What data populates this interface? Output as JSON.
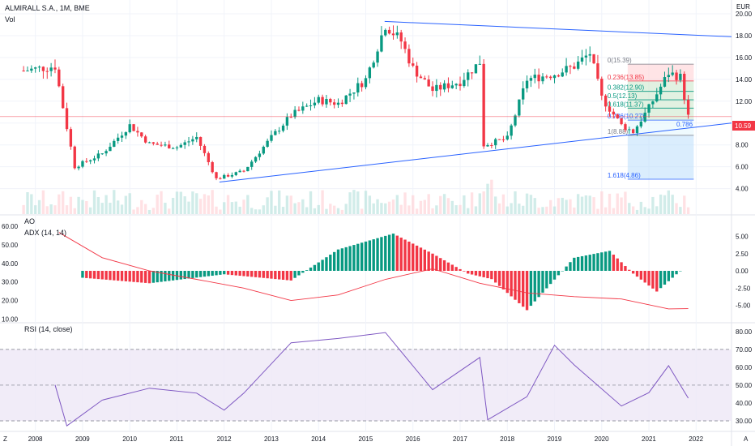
{
  "header": {
    "symbol": "ALMIRALL S.A., 1M, BME",
    "volume_label": "Vol",
    "currency": "EUR",
    "last_price": "10.59",
    "currency_switch_label": "A"
  },
  "price_axis": [
    "20.00",
    "18.00",
    "16.00",
    "14.00",
    "12.00",
    "10.00",
    "8.00",
    "6.00",
    "4.00"
  ],
  "x_axis": [
    "2008",
    "2009",
    "2010",
    "2011",
    "2012",
    "2013",
    "2014",
    "2015",
    "2016",
    "2017",
    "2018",
    "2019",
    "2020",
    "2021",
    "2022"
  ],
  "fib_levels": [
    {
      "text": "0(15.39)",
      "value": 15.39,
      "color": "#787b86"
    },
    {
      "text": "0.236(13.85)",
      "value": 13.85,
      "color": "#f23645"
    },
    {
      "text": "0.382(12.90)",
      "value": 12.9,
      "color": "#089981"
    },
    {
      "text": "0.5(12.13)",
      "value": 12.13,
      "color": "#089981"
    },
    {
      "text": "0.618(11.37)",
      "value": 11.37,
      "color": "#089981"
    },
    {
      "text": "0.786(10.27)",
      "value": 10.27,
      "color": "#2962ff"
    },
    {
      "text": "1(8.88)",
      "value": 8.88,
      "color": "#787b86"
    },
    {
      "text": "1.618(4.86)",
      "value": 4.86,
      "color": "#2962ff"
    }
  ],
  "trendline_label": "0.786",
  "ao_panel": {
    "title": "AO",
    "adx_title": "ADX (14, 14)",
    "right_axis": [
      "5.00",
      "2.50",
      "0.00",
      "-2.50",
      "-5.00"
    ],
    "left_axis": [
      "60.00",
      "50.00",
      "40.00",
      "30.00",
      "20.00",
      "10.00"
    ]
  },
  "rsi_panel": {
    "title": "RSI (14, close)",
    "right_axis": [
      "80.00",
      "70.00",
      "60.00",
      "50.00",
      "40.00",
      "30.00"
    ]
  },
  "footer": {
    "timezone_label": "Z"
  },
  "colors": {
    "up": "#089981",
    "down": "#f23645",
    "line": "#2962ff",
    "rsi": "#7e57c2",
    "band": "#ede7f6",
    "adx": "#f23645"
  },
  "chart_data": [
    {
      "type": "candlestick",
      "title": "ALMIRALL S.A., 1M, BME",
      "ylabel": "EUR",
      "ylim": [
        3.5,
        20.5
      ],
      "x": [
        "2007-10",
        "2008-06",
        "2008-09",
        "2008-11",
        "2009-06",
        "2010-01",
        "2010-06",
        "2011-01",
        "2011-06",
        "2011-11",
        "2012-06",
        "2013-01",
        "2013-06",
        "2014-01",
        "2014-06",
        "2015-01",
        "2015-06",
        "2015-10",
        "2016-01",
        "2016-06",
        "2017-01",
        "2017-06",
        "2017-07",
        "2018-01",
        "2018-06",
        "2019-01",
        "2019-06",
        "2019-10",
        "2020-01",
        "2020-06",
        "2020-09",
        "2021-01",
        "2021-06",
        "2021-09",
        "2021-11"
      ],
      "close": [
        14.8,
        15.2,
        9.6,
        6.0,
        7.2,
        9.8,
        8.1,
        7.8,
        8.7,
        4.9,
        5.6,
        8.7,
        10.7,
        12.1,
        11.8,
        14.0,
        19.0,
        17.5,
        15.0,
        13.0,
        13.8,
        15.6,
        8.0,
        8.6,
        14.0,
        14.5,
        15.2,
        16.4,
        12.3,
        9.8,
        9.2,
        11.4,
        14.6,
        14.2,
        10.59
      ]
    },
    {
      "type": "bar",
      "title": "AO",
      "x": [
        "2009-01",
        "2010-06",
        "2012-01",
        "2013-06",
        "2014-06",
        "2015-08",
        "2016-06",
        "2017-03",
        "2017-09",
        "2018-06",
        "2019-06",
        "2020-03",
        "2020-09",
        "2021-03",
        "2021-09"
      ],
      "values": [
        -1.0,
        -1.8,
        -0.5,
        -1.4,
        3.1,
        5.4,
        2.5,
        -0.4,
        -1.2,
        -5.7,
        1.9,
        2.9,
        -0.4,
        -3.0,
        0.0
      ],
      "ylim": [
        -6,
        6
      ]
    },
    {
      "type": "line",
      "title": "ADX (14, 14)",
      "x": [
        "2008-07",
        "2009-06",
        "2010-06",
        "2011-06",
        "2012-06",
        "2013-06",
        "2014-06",
        "2015-06",
        "2016-06",
        "2017-06",
        "2018-06",
        "2019-06",
        "2020-06",
        "2021-06",
        "2021-11"
      ],
      "values": [
        56.7,
        43.1,
        36.0,
        31.4,
        26.7,
        20.0,
        23.0,
        31.4,
        37.1,
        29.3,
        24.1,
        22.1,
        20.8,
        15.5,
        15.6
      ],
      "ylim": [
        8,
        64
      ]
    },
    {
      "type": "line",
      "title": "RSI (14, close)",
      "x": [
        "2008-06",
        "2008-09",
        "2009-06",
        "2010-06",
        "2011-06",
        "2012-01",
        "2012-06",
        "2013-06",
        "2014-06",
        "2015-06",
        "2016-06",
        "2017-06",
        "2017-08",
        "2018-06",
        "2019-01",
        "2019-06",
        "2020-06",
        "2021-01",
        "2021-06",
        "2021-11"
      ],
      "values": [
        50.1,
        27.2,
        41.6,
        48.3,
        45.5,
        36.0,
        45.5,
        73.7,
        76.1,
        79.4,
        47.4,
        65.5,
        30.6,
        43.5,
        72.3,
        61.3,
        38.3,
        45.8,
        60.9,
        42.7
      ],
      "levels": {
        "upper": 70,
        "lower": 30
      },
      "ylim": [
        25,
        84
      ]
    }
  ]
}
